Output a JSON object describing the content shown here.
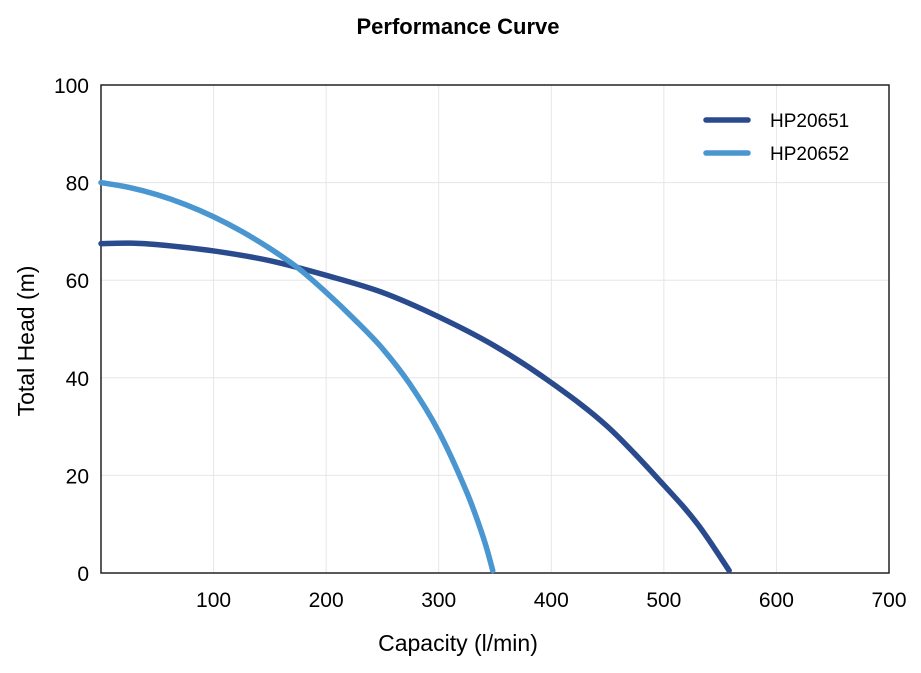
{
  "chart_data": {
    "type": "line",
    "title": "Performance Curve",
    "xlabel": "Capacity (l/min)",
    "ylabel": "Total Head (m)",
    "xlim": [
      0,
      700
    ],
    "ylim": [
      0,
      100
    ],
    "xticks": [
      100,
      200,
      300,
      400,
      500,
      600,
      700
    ],
    "yticks": [
      0,
      20,
      40,
      60,
      80,
      100
    ],
    "grid": true,
    "legend_position": "top-right",
    "series": [
      {
        "name": "HP20651",
        "color": "#2a4a8e",
        "x": [
          0,
          25,
          50,
          100,
          150,
          200,
          250,
          300,
          350,
          400,
          450,
          500,
          530,
          558
        ],
        "y": [
          67.5,
          67.6,
          67.3,
          66,
          64,
          61,
          57.5,
          52.5,
          46.5,
          39,
          30,
          18,
          10,
          0.5
        ]
      },
      {
        "name": "HP20652",
        "color": "#4a96d0",
        "x": [
          0,
          25,
          50,
          75,
          100,
          125,
          150,
          175,
          200,
          225,
          250,
          275,
          300,
          325,
          340,
          348
        ],
        "y": [
          80,
          79,
          77.5,
          75.5,
          73,
          70,
          66.5,
          62.5,
          57.5,
          52,
          46,
          38.5,
          29,
          16.5,
          7,
          0.5
        ]
      }
    ]
  }
}
